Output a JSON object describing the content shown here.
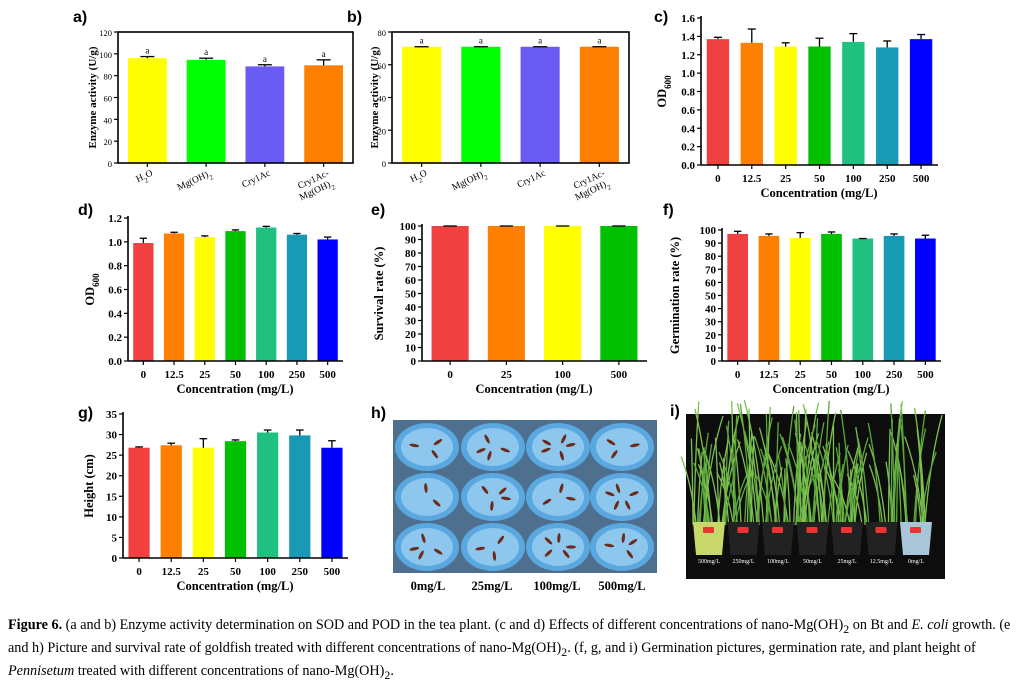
{
  "figure": {
    "caption": {
      "label": "Figure 6.",
      "text_parts": [
        {
          "t": " (a and b) Enzyme activity determination on SOD and POD in the tea plant. (c and d) Effects of different concentrations of nano-Mg(OH)"
        },
        {
          "t": "2",
          "sub": true
        },
        {
          "t": " on Bt and "
        },
        {
          "t": "E. coli",
          "i": true
        },
        {
          "t": " growth. (e and h) Picture and survival rate of goldfish treated with different concentrations of nano-Mg(OH)"
        },
        {
          "t": "2",
          "sub": true
        },
        {
          "t": ". (f, g, and i) Germination pictures, germination rate, and plant height of "
        },
        {
          "t": "Pennisetum",
          "i": true
        },
        {
          "t": " treated with different concentrations of nano-Mg(OH)"
        },
        {
          "t": "2",
          "sub": true
        },
        {
          "t": "."
        }
      ]
    },
    "photos": {
      "h": {
        "letter": "h)",
        "labels": [
          "0mg/L",
          "25mg/L",
          "100mg/L",
          "500mg/L"
        ],
        "colors": {
          "background": "#4f6f8f",
          "bowl": "#5aa8e0",
          "water": "#8ec7ee",
          "fish": "#6b2a1a"
        }
      },
      "i": {
        "letter": "i)",
        "pot_labels": [
          "500mg/L",
          "250mg/L",
          "100mg/L",
          "50mg/L",
          "25mg/L",
          "12.5mg/L",
          "0mg/L"
        ],
        "colors": {
          "background": "#0d0d0d",
          "plant": "#5aa83a",
          "pot": "#222222",
          "pot_first": "#c9d86a",
          "pot_last": "#a8c6d8"
        }
      }
    }
  },
  "chart_data": [
    {
      "id": "a",
      "letter": "a)",
      "type": "bar",
      "categories": [
        "H2O",
        "Mg(OH)2",
        "Cry1Ac",
        "Cry1Ac-Mg(OH)2"
      ],
      "category_labels": [
        [
          "H",
          "2",
          "O"
        ],
        [
          "Mg(OH)",
          "2",
          ""
        ],
        [
          "Cry1Ac",
          "",
          ""
        ],
        [
          "Cry1Ac-",
          "",
          "",
          "Mg(OH)",
          "2",
          ""
        ]
      ],
      "values": [
        96,
        94.5,
        88.5,
        89.5
      ],
      "errors": [
        1.5,
        1.5,
        1.5,
        5
      ],
      "significance": [
        "a",
        "a",
        "a",
        "a"
      ],
      "colors": [
        "#ffff00",
        "#00ff00",
        "#6b5bf5",
        "#ff8000"
      ],
      "xlabel": "",
      "ylabel": "Enzyme activity (U/g)",
      "ylim": [
        0,
        120
      ],
      "yticks": [
        0,
        20,
        40,
        60,
        80,
        100,
        120
      ],
      "xtick_rotated": true
    },
    {
      "id": "b",
      "letter": "b)",
      "type": "bar",
      "categories": [
        "H2O",
        "Mg(OH)2",
        "Cry1Ac",
        "Cry1Ac-Mg(OH)2"
      ],
      "category_labels": [
        [
          "H",
          "2",
          "O"
        ],
        [
          "Mg(OH)",
          "2",
          ""
        ],
        [
          "Cry1Ac",
          "",
          ""
        ],
        [
          "Cry1Ac-",
          "",
          "",
          "Mg(OH)",
          "2",
          ""
        ]
      ],
      "values": [
        71,
        71,
        71,
        71
      ],
      "errors": [
        0,
        0,
        0,
        0
      ],
      "significance": [
        "a",
        "a",
        "a",
        "a"
      ],
      "colors": [
        "#ffff00",
        "#00ff00",
        "#6b5bf5",
        "#ff8000"
      ],
      "xlabel": "",
      "ylabel": "Enzyme activity (U/g)",
      "ylim": [
        0,
        80
      ],
      "yticks": [
        0,
        20,
        40,
        60,
        80
      ],
      "xtick_rotated": true
    },
    {
      "id": "c",
      "letter": "c)",
      "type": "bar",
      "categories": [
        "0",
        "12.5",
        "25",
        "50",
        "100",
        "250",
        "500"
      ],
      "values": [
        1.37,
        1.33,
        1.29,
        1.29,
        1.34,
        1.28,
        1.37
      ],
      "errors": [
        0.02,
        0.15,
        0.04,
        0.09,
        0.09,
        0.07,
        0.05
      ],
      "colors": [
        "#f04040",
        "#ff8000",
        "#ffff00",
        "#00c000",
        "#20c080",
        "#1899b4",
        "#0000ff"
      ],
      "xlabel": "Concentration (mg/L)",
      "ylabel": "OD600",
      "ylabel_parts": [
        "OD",
        "600"
      ],
      "ylim": [
        0,
        1.6
      ],
      "yticks": [
        0.0,
        0.2,
        0.4,
        0.6,
        0.8,
        1.0,
        1.2,
        1.4,
        1.6
      ],
      "ytick_decimals": 1
    },
    {
      "id": "d",
      "letter": "d)",
      "type": "bar",
      "categories": [
        "0",
        "12.5",
        "25",
        "50",
        "100",
        "250",
        "500"
      ],
      "values": [
        0.99,
        1.07,
        1.04,
        1.09,
        1.12,
        1.06,
        1.02
      ],
      "errors": [
        0.04,
        0.01,
        0.01,
        0.01,
        0.01,
        0.01,
        0.02
      ],
      "colors": [
        "#f04040",
        "#ff8000",
        "#ffff00",
        "#00c000",
        "#20c080",
        "#1899b4",
        "#0000ff"
      ],
      "xlabel": "Concentration (mg/L)",
      "ylabel": "OD600",
      "ylabel_parts": [
        "OD",
        "600"
      ],
      "ylim": [
        0,
        1.2
      ],
      "yticks": [
        0.0,
        0.2,
        0.4,
        0.6,
        0.8,
        1.0,
        1.2
      ],
      "ytick_decimals": 1
    },
    {
      "id": "e",
      "letter": "e)",
      "type": "bar",
      "categories": [
        "0",
        "25",
        "100",
        "500"
      ],
      "values": [
        100,
        100,
        100,
        100
      ],
      "errors": [
        0,
        0,
        0,
        0
      ],
      "colors": [
        "#f04040",
        "#ff8000",
        "#ffff00",
        "#00c000"
      ],
      "xlabel": "Concentration (mg/L)",
      "ylabel": "Survival rate (%)",
      "ylim": [
        0,
        100
      ],
      "yticks": [
        0,
        10,
        20,
        30,
        40,
        50,
        60,
        70,
        80,
        90,
        100
      ]
    },
    {
      "id": "f",
      "letter": "f)",
      "type": "bar",
      "categories": [
        "0",
        "12.5",
        "25",
        "50",
        "100",
        "250",
        "500"
      ],
      "values": [
        97,
        95.5,
        94,
        97,
        93.5,
        95.5,
        93.5
      ],
      "errors": [
        2,
        1.5,
        4,
        1.5,
        0,
        1.5,
        2.5
      ],
      "colors": [
        "#f04040",
        "#ff8000",
        "#ffff00",
        "#00c000",
        "#20c080",
        "#1899b4",
        "#0000ff"
      ],
      "xlabel": "Concentration (mg/L)",
      "ylabel": "Germination rate (%)",
      "ylim": [
        0,
        100
      ],
      "yticks": [
        0,
        10,
        20,
        30,
        40,
        50,
        60,
        70,
        80,
        90,
        100
      ]
    },
    {
      "id": "g",
      "letter": "g)",
      "type": "bar",
      "categories": [
        "0",
        "12.5",
        "25",
        "50",
        "100",
        "250",
        "500"
      ],
      "values": [
        26.8,
        27.4,
        26.8,
        28.4,
        30.5,
        29.8,
        26.8
      ],
      "errors": [
        0.2,
        0.5,
        2.2,
        0.3,
        0.6,
        1.3,
        1.7
      ],
      "colors": [
        "#f04040",
        "#ff8000",
        "#ffff00",
        "#00c000",
        "#20c080",
        "#1899b4",
        "#0000ff"
      ],
      "xlabel": "Concentration (mg/L)",
      "ylabel": "Height (cm)",
      "ylim": [
        0,
        35
      ],
      "yticks": [
        0,
        5,
        10,
        15,
        20,
        25,
        30,
        35
      ]
    }
  ]
}
